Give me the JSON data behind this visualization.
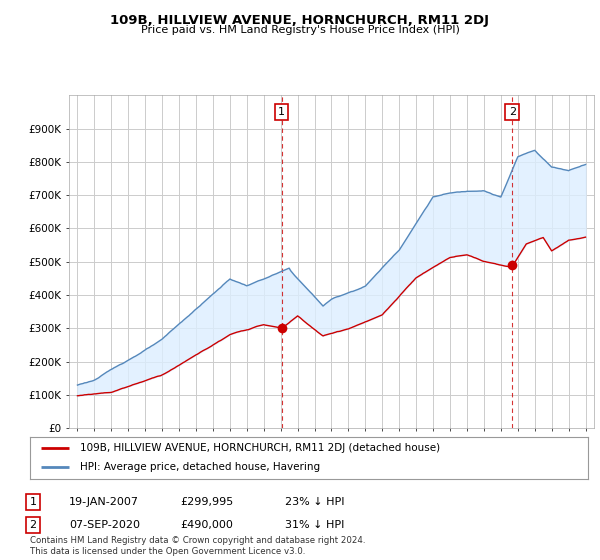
{
  "title": "109B, HILLVIEW AVENUE, HORNCHURCH, RM11 2DJ",
  "subtitle": "Price paid vs. HM Land Registry's House Price Index (HPI)",
  "legend_line1": "109B, HILLVIEW AVENUE, HORNCHURCH, RM11 2DJ (detached house)",
  "legend_line2": "HPI: Average price, detached house, Havering",
  "annotation1_label": "1",
  "annotation1_date": "19-JAN-2007",
  "annotation1_price": 299995,
  "annotation1_text": "23% ↓ HPI",
  "annotation2_label": "2",
  "annotation2_date": "07-SEP-2020",
  "annotation2_price": 490000,
  "annotation2_text": "31% ↓ HPI",
  "footnote": "Contains HM Land Registry data © Crown copyright and database right 2024.\nThis data is licensed under the Open Government Licence v3.0.",
  "hpi_color": "#5588bb",
  "hpi_fill_color": "#ddeeff",
  "price_color": "#cc0000",
  "marker_color": "#cc0000",
  "vline_color": "#cc0000",
  "ylim": [
    0,
    1000000
  ],
  "background_color": "#ffffff",
  "grid_color": "#cccccc",
  "sale1_year": 2007.05,
  "sale2_year": 2020.67
}
